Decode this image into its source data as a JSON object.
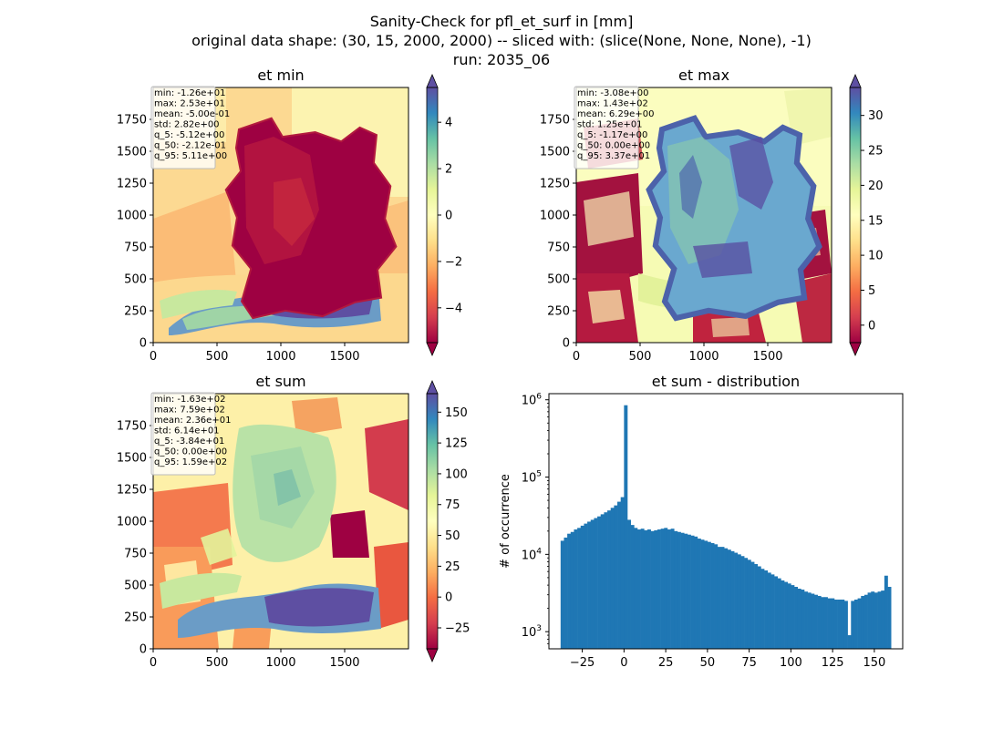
{
  "figure": {
    "title_lines": [
      "Sanity-Check for pfl_et_surf in [mm]",
      "original data shape: (30, 15, 2000, 2000) -- sliced with: (slice(None, None, None), -1)",
      "run: 2035_06"
    ]
  },
  "chart_data": [
    {
      "type": "heatmap",
      "title": "et min",
      "xticks": [
        0,
        500,
        1000,
        1500
      ],
      "yticks": [
        0,
        250,
        500,
        750,
        1000,
        1250,
        1500,
        1750
      ],
      "xlim": [
        0,
        2000
      ],
      "ylim": [
        0,
        2000
      ],
      "colormap": "Spectral",
      "colorbar": {
        "range": [
          -5.5,
          5.5
        ],
        "ticks": [
          4,
          2,
          0,
          -2,
          -4
        ],
        "tick_labels": [
          "4",
          "2",
          "0",
          "−2",
          "−4"
        ],
        "extend": "both"
      },
      "stats": [
        "min: -1.26e+01",
        "max: 2.53e+01",
        "mean: -5.00e-01",
        "std: 2.82e+00",
        "q_5: -5.12e+00",
        "q_50: -2.12e-01",
        "q_95: 5.11e+00"
      ]
    },
    {
      "type": "heatmap",
      "title": "et max",
      "xticks": [
        0,
        500,
        1000,
        1500
      ],
      "yticks": [
        0,
        250,
        500,
        750,
        1000,
        1250,
        1500,
        1750
      ],
      "xlim": [
        0,
        2000
      ],
      "ylim": [
        0,
        2000
      ],
      "colormap": "Spectral",
      "colorbar": {
        "range": [
          -2.5,
          34
        ],
        "ticks": [
          30,
          25,
          20,
          15,
          10,
          5,
          0
        ],
        "tick_labels": [
          "30",
          "25",
          "20",
          "15",
          "10",
          "5",
          "0"
        ],
        "extend": "both"
      },
      "stats": [
        "min: -3.08e+00",
        "max: 1.43e+02",
        "mean: 6.29e+00",
        "std: 1.25e+01",
        "q_5: -1.17e+00",
        "q_50: 0.00e+00",
        "q_95: 3.37e+01"
      ]
    },
    {
      "type": "heatmap",
      "title": "et sum",
      "xticks": [
        0,
        500,
        1000,
        1500
      ],
      "yticks": [
        0,
        250,
        500,
        750,
        1000,
        1250,
        1500,
        1750
      ],
      "xlim": [
        0,
        2000
      ],
      "ylim": [
        0,
        2000
      ],
      "colormap": "Spectral",
      "colorbar": {
        "range": [
          -42,
          165
        ],
        "ticks": [
          150,
          125,
          100,
          75,
          50,
          25,
          0,
          -25
        ],
        "tick_labels": [
          "150",
          "125",
          "100",
          "75",
          "50",
          "25",
          "0",
          "−25"
        ],
        "extend": "both"
      },
      "stats": [
        "min: -1.63e+02",
        "max: 7.59e+02",
        "mean: 2.36e+01",
        "std: 6.14e+01",
        "q_5: -3.84e+01",
        "q_50: 0.00e+00",
        "q_95: 1.59e+02"
      ]
    },
    {
      "type": "bar",
      "title": "et sum - distribution",
      "ylabel": "# of occurrence",
      "yscale": "log",
      "xlim": [
        -45,
        167
      ],
      "ylim": [
        600,
        1200000
      ],
      "xticks": [
        -25,
        0,
        25,
        50,
        75,
        100,
        125,
        150
      ],
      "xtick_labels": [
        "−25",
        "0",
        "25",
        "50",
        "75",
        "100",
        "125",
        "150"
      ],
      "yticks": [
        1000,
        10000,
        100000,
        1000000
      ],
      "ytick_labels": [
        "10^3",
        "10^4",
        "10^5",
        "10^6"
      ],
      "color": "#1f77b4",
      "bins": [
        {
          "x": -38,
          "y": 15000
        },
        {
          "x": -36,
          "y": 16500
        },
        {
          "x": -34,
          "y": 18500
        },
        {
          "x": -32,
          "y": 19500
        },
        {
          "x": -30,
          "y": 21000
        },
        {
          "x": -28,
          "y": 22000
        },
        {
          "x": -26,
          "y": 23500
        },
        {
          "x": -24,
          "y": 25000
        },
        {
          "x": -22,
          "y": 26500
        },
        {
          "x": -20,
          "y": 28000
        },
        {
          "x": -18,
          "y": 29500
        },
        {
          "x": -16,
          "y": 31000
        },
        {
          "x": -14,
          "y": 33000
        },
        {
          "x": -12,
          "y": 35000
        },
        {
          "x": -10,
          "y": 37000
        },
        {
          "x": -8,
          "y": 40000
        },
        {
          "x": -6,
          "y": 43000
        },
        {
          "x": -4,
          "y": 48000
        },
        {
          "x": -2,
          "y": 55000
        },
        {
          "x": 0,
          "y": 850000
        },
        {
          "x": 2,
          "y": 28000
        },
        {
          "x": 4,
          "y": 24000
        },
        {
          "x": 6,
          "y": 22000
        },
        {
          "x": 8,
          "y": 21000
        },
        {
          "x": 10,
          "y": 21500
        },
        {
          "x": 12,
          "y": 20500
        },
        {
          "x": 14,
          "y": 21000
        },
        {
          "x": 16,
          "y": 20000
        },
        {
          "x": 18,
          "y": 20500
        },
        {
          "x": 20,
          "y": 21000
        },
        {
          "x": 22,
          "y": 21500
        },
        {
          "x": 24,
          "y": 22000
        },
        {
          "x": 26,
          "y": 21000
        },
        {
          "x": 28,
          "y": 21500
        },
        {
          "x": 30,
          "y": 20000
        },
        {
          "x": 32,
          "y": 19500
        },
        {
          "x": 34,
          "y": 19000
        },
        {
          "x": 36,
          "y": 18500
        },
        {
          "x": 38,
          "y": 18000
        },
        {
          "x": 40,
          "y": 17500
        },
        {
          "x": 42,
          "y": 17000
        },
        {
          "x": 44,
          "y": 16000
        },
        {
          "x": 46,
          "y": 15500
        },
        {
          "x": 48,
          "y": 15000
        },
        {
          "x": 50,
          "y": 14500
        },
        {
          "x": 52,
          "y": 14000
        },
        {
          "x": 54,
          "y": 13500
        },
        {
          "x": 56,
          "y": 12500
        },
        {
          "x": 58,
          "y": 12500
        },
        {
          "x": 60,
          "y": 12000
        },
        {
          "x": 62,
          "y": 11500
        },
        {
          "x": 64,
          "y": 11000
        },
        {
          "x": 66,
          "y": 10500
        },
        {
          "x": 68,
          "y": 10000
        },
        {
          "x": 70,
          "y": 9500
        },
        {
          "x": 72,
          "y": 9000
        },
        {
          "x": 74,
          "y": 8500
        },
        {
          "x": 76,
          "y": 8000
        },
        {
          "x": 78,
          "y": 7500
        },
        {
          "x": 80,
          "y": 7000
        },
        {
          "x": 82,
          "y": 6500
        },
        {
          "x": 84,
          "y": 6200
        },
        {
          "x": 86,
          "y": 5800
        },
        {
          "x": 88,
          "y": 5500
        },
        {
          "x": 90,
          "y": 5200
        },
        {
          "x": 92,
          "y": 4900
        },
        {
          "x": 94,
          "y": 4600
        },
        {
          "x": 96,
          "y": 4400
        },
        {
          "x": 98,
          "y": 4200
        },
        {
          "x": 100,
          "y": 4000
        },
        {
          "x": 102,
          "y": 3800
        },
        {
          "x": 104,
          "y": 3600
        },
        {
          "x": 106,
          "y": 3500
        },
        {
          "x": 108,
          "y": 3300
        },
        {
          "x": 110,
          "y": 3200
        },
        {
          "x": 112,
          "y": 3100
        },
        {
          "x": 114,
          "y": 3000
        },
        {
          "x": 116,
          "y": 2900
        },
        {
          "x": 118,
          "y": 2800
        },
        {
          "x": 120,
          "y": 2800
        },
        {
          "x": 122,
          "y": 2700
        },
        {
          "x": 124,
          "y": 2700
        },
        {
          "x": 126,
          "y": 2600
        },
        {
          "x": 128,
          "y": 2600
        },
        {
          "x": 130,
          "y": 2600
        },
        {
          "x": 132,
          "y": 2500
        },
        {
          "x": 134,
          "y": 900
        },
        {
          "x": 136,
          "y": 2500
        },
        {
          "x": 138,
          "y": 2600
        },
        {
          "x": 140,
          "y": 2700
        },
        {
          "x": 142,
          "y": 2900
        },
        {
          "x": 144,
          "y": 3000
        },
        {
          "x": 146,
          "y": 3200
        },
        {
          "x": 148,
          "y": 3300
        },
        {
          "x": 150,
          "y": 3200
        },
        {
          "x": 152,
          "y": 3300
        },
        {
          "x": 154,
          "y": 3400
        },
        {
          "x": 156,
          "y": 5300
        },
        {
          "x": 158,
          "y": 3800
        }
      ]
    }
  ]
}
